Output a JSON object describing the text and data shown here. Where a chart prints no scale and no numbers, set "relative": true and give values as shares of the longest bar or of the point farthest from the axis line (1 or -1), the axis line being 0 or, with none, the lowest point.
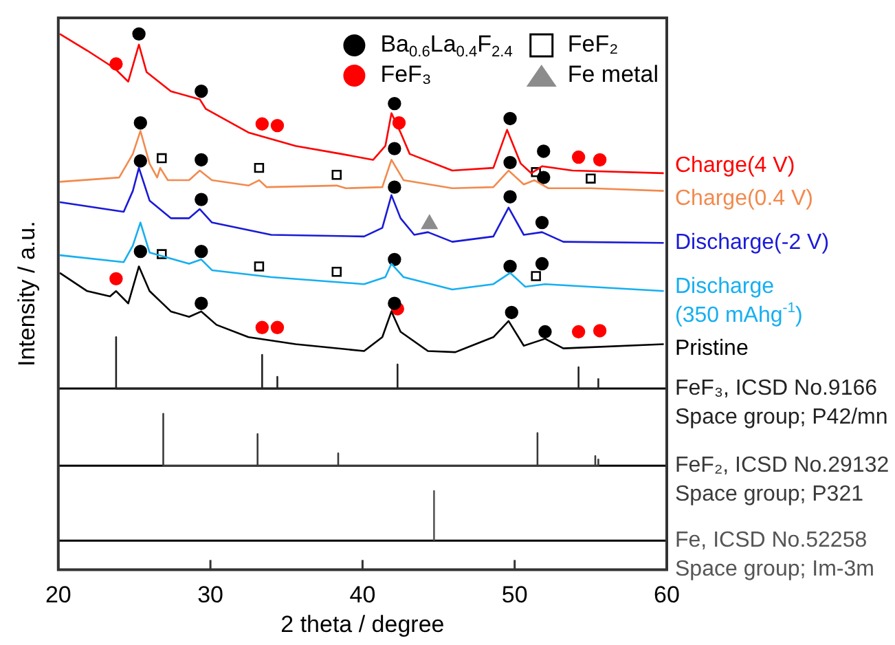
{
  "chart_data": {
    "type": "line",
    "relative": true,
    "xlabel": "2 theta / degree",
    "ylabel": "Intensity / a.u.",
    "xlim": [
      20,
      60
    ],
    "xticks": [
      20,
      30,
      40,
      50,
      60
    ],
    "legend": "top right",
    "series": [
      {
        "name": "Charge(4 V)",
        "color": "#ff0000",
        "x": [
          20.1,
          21.9,
          23.7,
          24.6,
          25.3,
          25.8,
          27.4,
          29.3,
          29.7,
          32.5,
          35.6,
          38.6,
          40.7,
          41.5,
          41.9,
          42.5,
          43.1,
          45.9,
          48.6,
          49.5,
          50.4,
          51.1,
          51.8,
          53.8,
          59.8
        ],
        "values": [
          1.0,
          0.969,
          0.936,
          0.911,
          0.98,
          0.929,
          0.893,
          0.878,
          0.86,
          0.816,
          0.791,
          0.776,
          0.765,
          0.791,
          0.852,
          0.816,
          0.776,
          0.745,
          0.75,
          0.821,
          0.758,
          0.74,
          0.753,
          0.745,
          0.74
        ]
      },
      {
        "name": "Charge(0.4 V)",
        "color": "#f28a4e",
        "x": [
          20.1,
          24,
          24.9,
          25.4,
          26,
          26.5,
          26.7,
          27.2,
          28.6,
          29.3,
          30.1,
          32.5,
          33.2,
          33.7,
          38.3,
          38.9,
          41.3,
          41.9,
          42.7,
          45.9,
          48.6,
          49.6,
          50.6,
          51.3,
          52.2,
          55,
          59.8
        ],
        "values": [
          0.724,
          0.732,
          0.776,
          0.819,
          0.758,
          0.732,
          0.75,
          0.727,
          0.727,
          0.745,
          0.727,
          0.717,
          0.727,
          0.714,
          0.717,
          0.712,
          0.714,
          0.765,
          0.727,
          0.712,
          0.714,
          0.745,
          0.719,
          0.727,
          0.712,
          0.712,
          0.707
        ]
      },
      {
        "name": "Discharge(-2 V)",
        "color": "#1a1ad8",
        "x": [
          20.1,
          24.3,
          24.9,
          25.3,
          26,
          27.4,
          28.6,
          29.3,
          30.1,
          34,
          40.1,
          41.3,
          41.9,
          42.5,
          43.4,
          44.3,
          45.9,
          48.6,
          49.6,
          50.6,
          51.8,
          53.2,
          59.8
        ],
        "values": [
          0.686,
          0.668,
          0.707,
          0.75,
          0.689,
          0.656,
          0.656,
          0.673,
          0.648,
          0.625,
          0.622,
          0.638,
          0.699,
          0.656,
          0.625,
          0.63,
          0.612,
          0.622,
          0.676,
          0.625,
          0.63,
          0.612,
          0.61
        ]
      },
      {
        "name": "Discharge\n(350 mAhg$^{-1}$)",
        "color": "#16aff0",
        "x": [
          20.1,
          24.3,
          24.9,
          25.4,
          26,
          28.6,
          29.4,
          30.1,
          34,
          40.1,
          41.5,
          41.9,
          42.7,
          45.9,
          48.6,
          49.7,
          50.7,
          52,
          59.8
        ],
        "values": [
          0.587,
          0.574,
          0.605,
          0.648,
          0.592,
          0.571,
          0.579,
          0.559,
          0.546,
          0.533,
          0.546,
          0.571,
          0.546,
          0.523,
          0.533,
          0.554,
          0.528,
          0.533,
          0.52
        ]
      },
      {
        "name": "Pristine",
        "color": "#000000",
        "x": [
          20.1,
          21.9,
          23.4,
          23.8,
          24.6,
          25.3,
          26,
          27.4,
          28.6,
          29.4,
          30.4,
          32.5,
          35.6,
          40.1,
          41.3,
          41.9,
          42.5,
          44.3,
          46.1,
          48.6,
          49.6,
          50.6,
          52,
          53.2,
          59.8
        ],
        "values": [
          0.554,
          0.52,
          0.51,
          0.52,
          0.497,
          0.566,
          0.52,
          0.482,
          0.472,
          0.482,
          0.457,
          0.434,
          0.421,
          0.408,
          0.434,
          0.482,
          0.444,
          0.408,
          0.406,
          0.434,
          0.464,
          0.418,
          0.431,
          0.413,
          0.421
        ]
      },
      {
        "name": "FeF₃, ICSD No.9166\nSpace group; P42/mn",
        "color": "#222222",
        "x": [
          23.8,
          23.8,
          23.8,
          33.4,
          33.4,
          33.4,
          34.4,
          34.4,
          34.4,
          42.3,
          42.3,
          42.3,
          54.2,
          54.2,
          54.2,
          55.5,
          55.5
        ],
        "values": [
          0.338,
          0.434,
          0.338,
          0.338,
          0.401,
          0.338,
          0.338,
          0.36,
          0.338,
          0.338,
          0.383,
          0.338,
          0.338,
          0.378,
          0.338,
          0.338,
          0.357
        ]
      },
      {
        "name": "FeF₂, ICSD No.29132\nSpace group; P321",
        "color": "#3a3a3a",
        "x": [
          26.9,
          26.9,
          26.9,
          33.1,
          33.1,
          33.1,
          38.4,
          38.4,
          38.4,
          51.5,
          51.5,
          51.5,
          55.3,
          55.3,
          55.3,
          55.5,
          55.5
        ],
        "values": [
          0.194,
          0.291,
          0.194,
          0.194,
          0.253,
          0.194,
          0.194,
          0.217,
          0.194,
          0.194,
          0.255,
          0.194,
          0.194,
          0.212,
          0.194,
          0.194,
          0.207
        ]
      },
      {
        "name": "Fe, ICSD No.52258\nSpace group; Im-3m",
        "color": "#555555",
        "x": [
          44.7,
          44.7
        ],
        "values": [
          0.054,
          0.148
        ]
      },
      {
        "name": "Ba$_{0.6}$La$_{0.4}$F$_{2.4}$",
        "type": "scatter",
        "marker": "circle",
        "color": "#000000",
        "x": [
          25.3,
          29.4,
          42.1,
          49.7,
          51.9,
          25.4,
          29.4,
          42.1,
          49.7,
          51.9,
          25.4,
          29.4,
          42.1,
          49.7,
          51.8,
          25.4,
          29.4,
          42.1,
          49.7,
          51.8,
          29.4,
          42.1,
          49.8,
          52
        ],
        "values": [
          1.0,
          0.893,
          0.87,
          0.842,
          0.781,
          0.834,
          0.765,
          0.786,
          0.76,
          0.732,
          0.763,
          0.691,
          0.714,
          0.696,
          0.648,
          0.594,
          0.594,
          0.579,
          0.566,
          0.571,
          0.497,
          0.497,
          0.48,
          0.444
        ]
      },
      {
        "name": "FeF₃",
        "type": "scatter",
        "marker": "circle",
        "color": "#ff0000",
        "x": [
          23.8,
          33.4,
          34.4,
          42.4,
          54.2,
          55.6,
          23.8,
          33.4,
          34.4,
          42.3,
          54.2,
          55.6
        ],
        "values": [
          0.944,
          0.832,
          0.829,
          0.834,
          0.77,
          0.765,
          0.543,
          0.452,
          0.452,
          0.487,
          0.444,
          0.446
        ]
      },
      {
        "name": "FeF₂",
        "type": "scatter",
        "marker": "square",
        "color": "#000000",
        "x": [
          26.8,
          33.2,
          38.3,
          51.4,
          55,
          26.8,
          33.2,
          38.3,
          51.4
        ],
        "values": [
          0.768,
          0.75,
          0.737,
          0.742,
          0.73,
          0.589,
          0.566,
          0.556,
          0.548
        ]
      },
      {
        "name": "Fe metal",
        "type": "scatter",
        "marker": "triangle",
        "color": "#8c8c8c",
        "x": [
          44.4
        ],
        "values": [
          0.645
        ]
      }
    ],
    "ref_lines": [
      {
        "axis": "y",
        "value": 0.338,
        "color": "#000000"
      },
      {
        "axis": "y",
        "value": 0.194,
        "color": "#000000"
      },
      {
        "axis": "y",
        "value": 0.054,
        "color": "#000000"
      }
    ]
  }
}
